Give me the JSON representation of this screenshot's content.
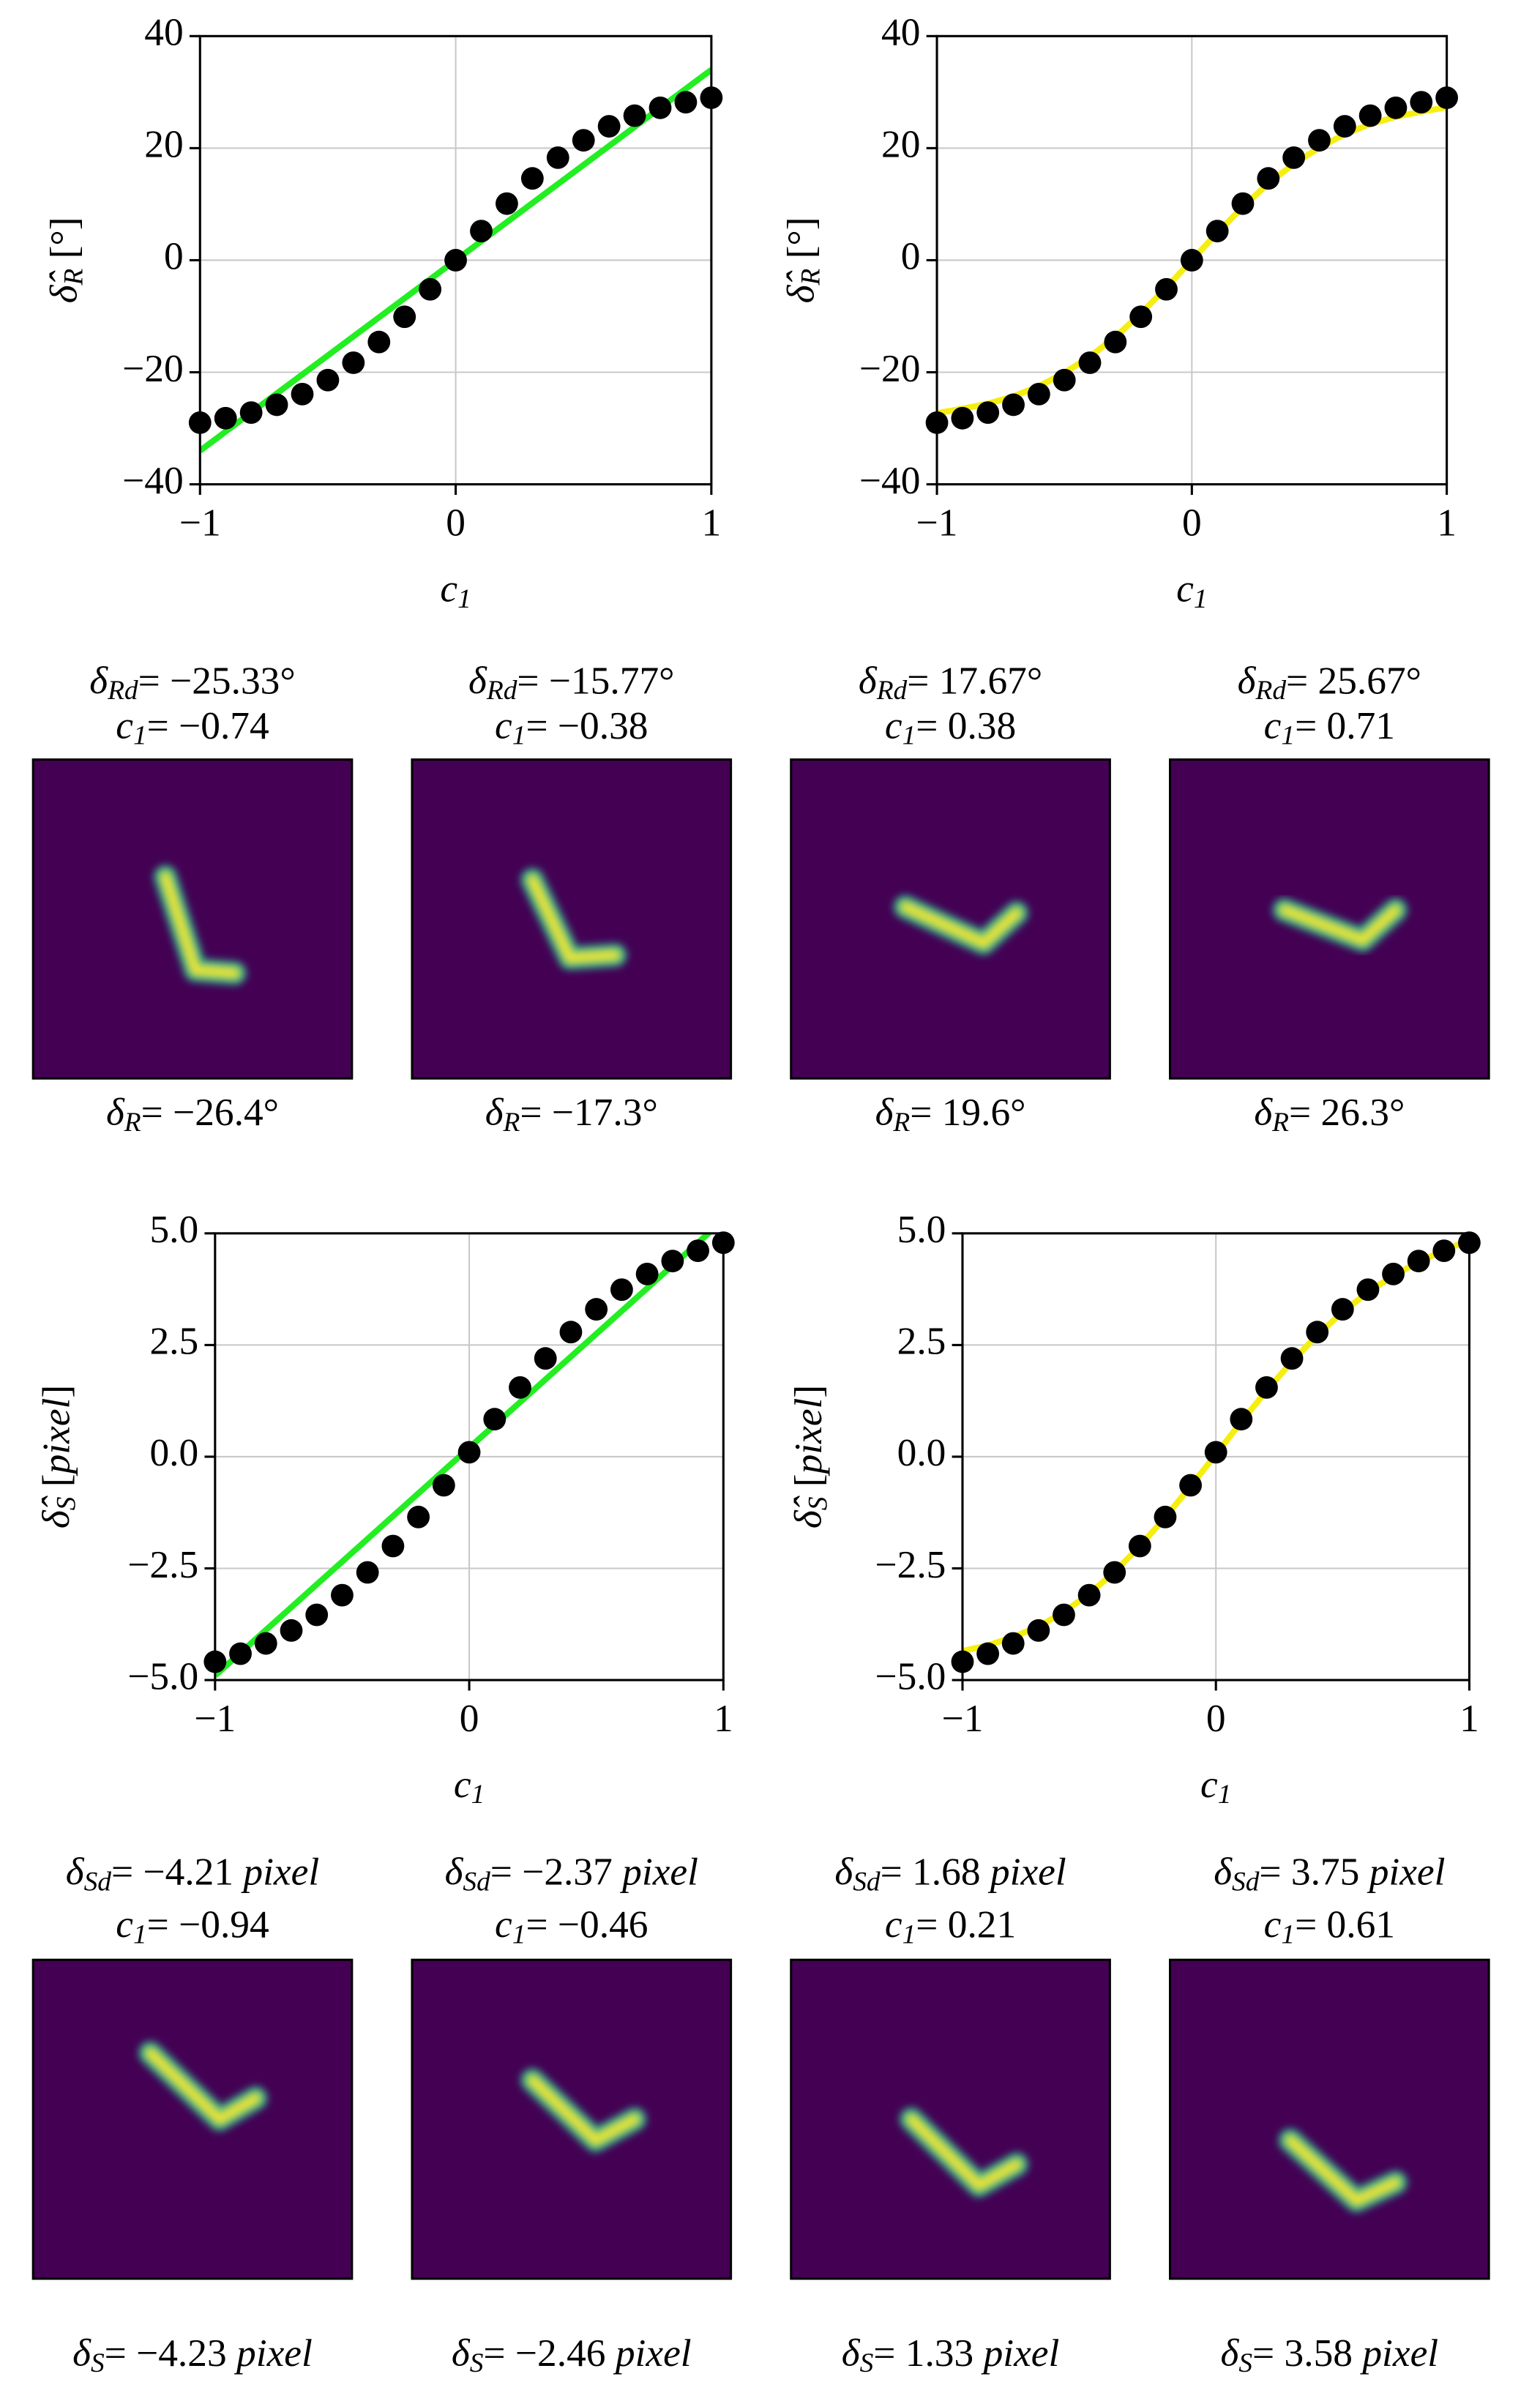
{
  "chart_data": [
    {
      "type": "scatter",
      "xlabel": {
        "sym": "c",
        "sub": "1"
      },
      "ylabel": {
        "sym": "δ̂",
        "sub": "R",
        "rest": " [°]"
      },
      "xlim": [
        -1,
        1
      ],
      "xticks": [
        {
          "value": -1,
          "label": "−1"
        },
        0,
        1
      ],
      "ylim": [
        -40,
        40
      ],
      "yticks": [
        {
          "value": -40,
          "label": "−40"
        },
        {
          "value": -20,
          "label": "−20"
        },
        0,
        20,
        40
      ],
      "grid": true,
      "points": {
        "color": "#000000",
        "x": [
          -1,
          -0.9,
          -0.8,
          -0.7,
          -0.6,
          -0.5,
          -0.4,
          -0.3,
          -0.2,
          -0.1,
          0,
          0.1,
          0.2,
          0.3,
          0.4,
          0.5,
          0.6,
          0.7,
          0.8,
          0.9,
          1
        ],
        "values": [
          -29.0,
          -28.2,
          -27.2,
          -25.8,
          -23.9,
          -21.4,
          -18.3,
          -14.6,
          -10.1,
          -5.2,
          0,
          5.2,
          10.1,
          14.6,
          18.3,
          21.4,
          23.9,
          25.8,
          27.2,
          28.2,
          29.0
        ]
      },
      "fit": {
        "color": "#22ee22",
        "x": [
          -1,
          1
        ],
        "values": [
          -34,
          34
        ]
      }
    },
    {
      "type": "scatter",
      "xlabel": {
        "sym": "c",
        "sub": "1"
      },
      "ylabel": {
        "sym": "δ̂",
        "sub": "R",
        "rest": " [°]"
      },
      "xlim": [
        -1,
        1
      ],
      "xticks": [
        {
          "value": -1,
          "label": "−1"
        },
        0,
        1
      ],
      "ylim": [
        -40,
        40
      ],
      "yticks": [
        {
          "value": -40,
          "label": "−40"
        },
        {
          "value": -20,
          "label": "−20"
        },
        0,
        20,
        40
      ],
      "grid": true,
      "points": {
        "color": "#000000",
        "x": [
          -1,
          -0.9,
          -0.8,
          -0.7,
          -0.6,
          -0.5,
          -0.4,
          -0.3,
          -0.2,
          -0.1,
          0,
          0.1,
          0.2,
          0.3,
          0.4,
          0.5,
          0.6,
          0.7,
          0.8,
          0.9,
          1
        ],
        "values": [
          -29.0,
          -28.2,
          -27.2,
          -25.8,
          -23.9,
          -21.4,
          -18.3,
          -14.6,
          -10.1,
          -5.2,
          0,
          5.2,
          10.1,
          14.6,
          18.3,
          21.4,
          23.9,
          25.8,
          27.2,
          28.2,
          29.0
        ]
      },
      "fit": {
        "color": "#f5ee10",
        "x": [
          -1,
          -0.9,
          -0.8,
          -0.7,
          -0.6,
          -0.5,
          -0.4,
          -0.3,
          -0.2,
          -0.1,
          0,
          0.1,
          0.2,
          0.3,
          0.4,
          0.5,
          0.6,
          0.7,
          0.8,
          0.9,
          1
        ],
        "values": [
          -27.3,
          -26.5,
          -25.6,
          -24.3,
          -22.5,
          -20.1,
          -17.2,
          -13.7,
          -9.5,
          -4.9,
          0,
          4.9,
          9.5,
          13.7,
          17.2,
          20.1,
          22.5,
          24.3,
          25.6,
          26.5,
          27.3
        ]
      }
    },
    {
      "type": "scatter",
      "xlabel": {
        "sym": "c",
        "sub": "1"
      },
      "ylabel": {
        "sym": "δ̂",
        "sub": "S",
        "rest": " [",
        "unit": "pixel",
        "post": "]"
      },
      "xlim": [
        -1,
        1
      ],
      "xticks": [
        {
          "value": -1,
          "label": "−1"
        },
        0,
        1
      ],
      "ylim": [
        -5,
        5
      ],
      "yticks": [
        {
          "value": -5,
          "label": "−5.0"
        },
        {
          "value": -2.5,
          "label": "−2.5"
        },
        {
          "value": 0,
          "label": "0.0"
        },
        2.5,
        {
          "value": 5,
          "label": "5.0"
        }
      ],
      "grid": true,
      "points": {
        "color": "#000000",
        "x": [
          -1,
          -0.9,
          -0.8,
          -0.7,
          -0.6,
          -0.5,
          -0.4,
          -0.3,
          -0.2,
          -0.1,
          0,
          0.1,
          0.2,
          0.3,
          0.4,
          0.5,
          0.6,
          0.7,
          0.8,
          0.9,
          1
        ],
        "values": [
          -4.59,
          -4.41,
          -4.18,
          -3.89,
          -3.54,
          -3.1,
          -2.59,
          -2.0,
          -1.35,
          -0.64,
          0.1,
          0.84,
          1.55,
          2.2,
          2.79,
          3.3,
          3.74,
          4.09,
          4.38,
          4.61,
          4.79
        ]
      },
      "fit": {
        "color": "#22ee22",
        "x": [
          -1,
          1
        ],
        "values": [
          -4.9,
          5.3
        ]
      }
    },
    {
      "type": "scatter",
      "xlabel": {
        "sym": "c",
        "sub": "1"
      },
      "ylabel": {
        "sym": "δ̂",
        "sub": "S",
        "rest": " [",
        "unit": "pixel",
        "post": "]"
      },
      "xlim": [
        -1,
        1
      ],
      "xticks": [
        {
          "value": -1,
          "label": "−1"
        },
        0,
        1
      ],
      "ylim": [
        -5,
        5
      ],
      "yticks": [
        {
          "value": -5,
          "label": "−5.0"
        },
        {
          "value": -2.5,
          "label": "−2.5"
        },
        {
          "value": 0,
          "label": "0.0"
        },
        2.5,
        {
          "value": 5,
          "label": "5.0"
        }
      ],
      "grid": true,
      "points": {
        "color": "#000000",
        "x": [
          -1,
          -0.9,
          -0.8,
          -0.7,
          -0.6,
          -0.5,
          -0.4,
          -0.3,
          -0.2,
          -0.1,
          0,
          0.1,
          0.2,
          0.3,
          0.4,
          0.5,
          0.6,
          0.7,
          0.8,
          0.9,
          1
        ],
        "values": [
          -4.59,
          -4.41,
          -4.18,
          -3.89,
          -3.54,
          -3.1,
          -2.59,
          -2.0,
          -1.35,
          -0.64,
          0.1,
          0.84,
          1.55,
          2.2,
          2.79,
          3.3,
          3.74,
          4.09,
          4.38,
          4.61,
          4.79
        ]
      },
      "fit": {
        "color": "#f5ee10",
        "x": [
          -1,
          -0.9,
          -0.8,
          -0.7,
          -0.6,
          -0.5,
          -0.4,
          -0.3,
          -0.2,
          -0.1,
          0,
          0.1,
          0.2,
          0.3,
          0.4,
          0.5,
          0.6,
          0.7,
          0.8,
          0.9,
          1
        ],
        "values": [
          -4.35,
          -4.22,
          -4.04,
          -3.8,
          -3.48,
          -3.07,
          -2.58,
          -2.0,
          -1.36,
          -0.66,
          0.05,
          0.78,
          1.48,
          2.13,
          2.72,
          3.24,
          3.68,
          4.05,
          4.36,
          4.62,
          4.85
        ]
      }
    }
  ],
  "rotation_panels": [
    {
      "title": [
        {
          "sym": "δ",
          "sub": "Rd",
          "rest": "= −25.33°"
        },
        {
          "sym": "c",
          "sub": "1",
          "rest": "= −0.74"
        }
      ],
      "caption": {
        "sym": "δ",
        "sub": "R",
        "rest": "= −26.4°"
      }
    },
    {
      "title": [
        {
          "sym": "δ",
          "sub": "Rd",
          "rest": "= −15.77°"
        },
        {
          "sym": "c",
          "sub": "1",
          "rest": "= −0.38"
        }
      ],
      "caption": {
        "sym": "δ",
        "sub": "R",
        "rest": "= −17.3°"
      }
    },
    {
      "title": [
        {
          "sym": "δ",
          "sub": "Rd",
          "rest": "= 17.67°"
        },
        {
          "sym": "c",
          "sub": "1",
          "rest": "= 0.38"
        }
      ],
      "caption": {
        "sym": "δ",
        "sub": "R",
        "rest": "= 19.6°"
      }
    },
    {
      "title": [
        {
          "sym": "δ",
          "sub": "Rd",
          "rest": "= 25.67°"
        },
        {
          "sym": "c",
          "sub": "1",
          "rest": "= 0.71"
        }
      ],
      "caption": {
        "sym": "δ",
        "sub": "R",
        "rest": "= 26.3°"
      }
    }
  ],
  "shift_panels": [
    {
      "title": [
        {
          "sym": "δ",
          "sub": "Sd",
          "rest": "= −4.21 ",
          "unit": "pixel"
        },
        {
          "sym": "c",
          "sub": "1",
          "rest": "= −0.94"
        }
      ],
      "caption": {
        "sym": "δ",
        "sub": "S",
        "rest": "= −4.23 ",
        "unit": "pixel"
      }
    },
    {
      "title": [
        {
          "sym": "δ",
          "sub": "Sd",
          "rest": "= −2.37 ",
          "unit": "pixel"
        },
        {
          "sym": "c",
          "sub": "1",
          "rest": "= −0.46"
        }
      ],
      "caption": {
        "sym": "δ",
        "sub": "S",
        "rest": "= −2.46 ",
        "unit": "pixel"
      }
    },
    {
      "title": [
        {
          "sym": "δ",
          "sub": "Sd",
          "rest": "= 1.68 ",
          "unit": "pixel"
        },
        {
          "sym": "c",
          "sub": "1",
          "rest": "= 0.21"
        }
      ],
      "caption": {
        "sym": "δ",
        "sub": "S",
        "rest": "= 1.33 ",
        "unit": "pixel"
      }
    },
    {
      "title": [
        {
          "sym": "δ",
          "sub": "Sd",
          "rest": "= 3.75 ",
          "unit": "pixel"
        },
        {
          "sym": "c",
          "sub": "1",
          "rest": "= 0.61"
        }
      ],
      "caption": {
        "sym": "δ",
        "sub": "S",
        "rest": "= 3.58 ",
        "unit": "pixel"
      }
    }
  ]
}
